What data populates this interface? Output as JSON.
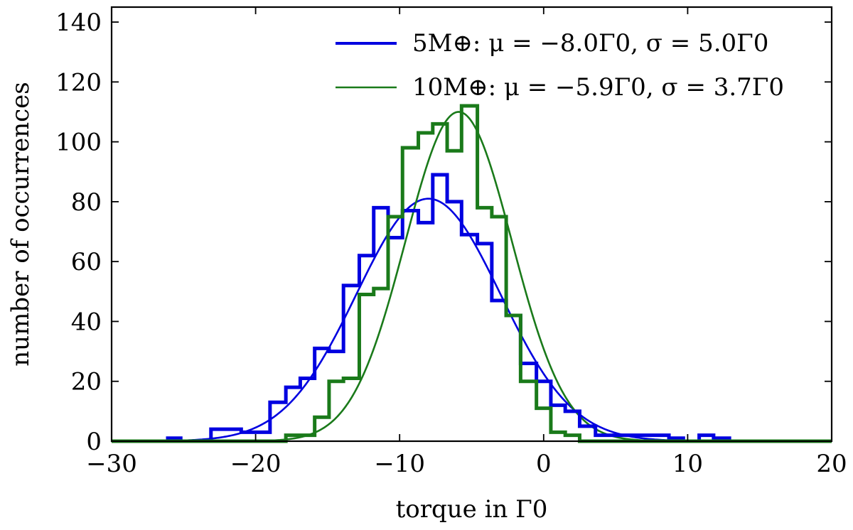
{
  "chart_data": {
    "type": "histogram",
    "title": "",
    "xlabel": "torque in Γ0",
    "ylabel": "number of occurrences",
    "xlim": [
      -30,
      20
    ],
    "ylim": [
      0,
      145
    ],
    "xticks": [
      -30,
      -20,
      -10,
      0,
      10,
      20
    ],
    "xtick_labels": [
      "−30",
      "−20",
      "−10",
      "0",
      "10",
      "20"
    ],
    "yticks": [
      0,
      20,
      40,
      60,
      80,
      100,
      120,
      140
    ],
    "ytick_labels": [
      "0",
      "20",
      "40",
      "60",
      "80",
      "100",
      "120",
      "140"
    ],
    "grid": false,
    "legend_position": "top-right",
    "series": [
      {
        "name": "5M⊕: μ = −8.0Γ0, σ = 5.0Γ0",
        "mass_label": "5M",
        "mu": -8.0,
        "sigma": 5.0,
        "amplitude": 81,
        "color": "#0000e0",
        "step_x": [
          -30,
          -26.1,
          -25.2,
          -23.1,
          -21.0,
          -19.0,
          -17.9,
          -16.9,
          -15.9,
          -14.9,
          -13.9,
          -12.8,
          -11.8,
          -10.8,
          -9.8,
          -8.7,
          -7.7,
          -6.7,
          -5.7,
          -4.6,
          -3.6,
          -2.6,
          -1.6,
          -0.5,
          0.5,
          1.5,
          2.5,
          3.6,
          8.7,
          9.7,
          10.8,
          11.8,
          12.9,
          20
        ],
        "step_y": [
          0,
          1,
          0,
          4,
          3,
          13,
          18,
          21,
          31,
          30,
          52,
          62,
          78,
          68,
          77,
          73,
          89,
          80,
          69,
          66,
          47,
          42,
          26,
          20,
          12,
          10,
          5,
          2,
          1,
          0,
          2,
          1,
          0,
          0
        ]
      },
      {
        "name": "10M⊕: μ = −5.9Γ0, σ = 3.7Γ0",
        "mass_label": "10M",
        "mu": -5.9,
        "sigma": 3.7,
        "amplitude": 110,
        "color": "#1a7a1a",
        "step_x": [
          -30,
          -17.9,
          -15.9,
          -14.9,
          -13.9,
          -12.8,
          -11.8,
          -10.8,
          -9.8,
          -8.7,
          -7.7,
          -6.7,
          -5.7,
          -4.6,
          -3.6,
          -2.6,
          -1.6,
          -0.5,
          0.5,
          1.5,
          2.5,
          4.8,
          20
        ],
        "step_y": [
          0,
          2,
          8,
          20,
          21,
          49,
          51,
          75,
          98,
          103,
          106,
          97,
          112,
          78,
          75,
          42,
          20,
          11,
          3,
          2,
          0,
          0,
          0
        ]
      }
    ]
  }
}
